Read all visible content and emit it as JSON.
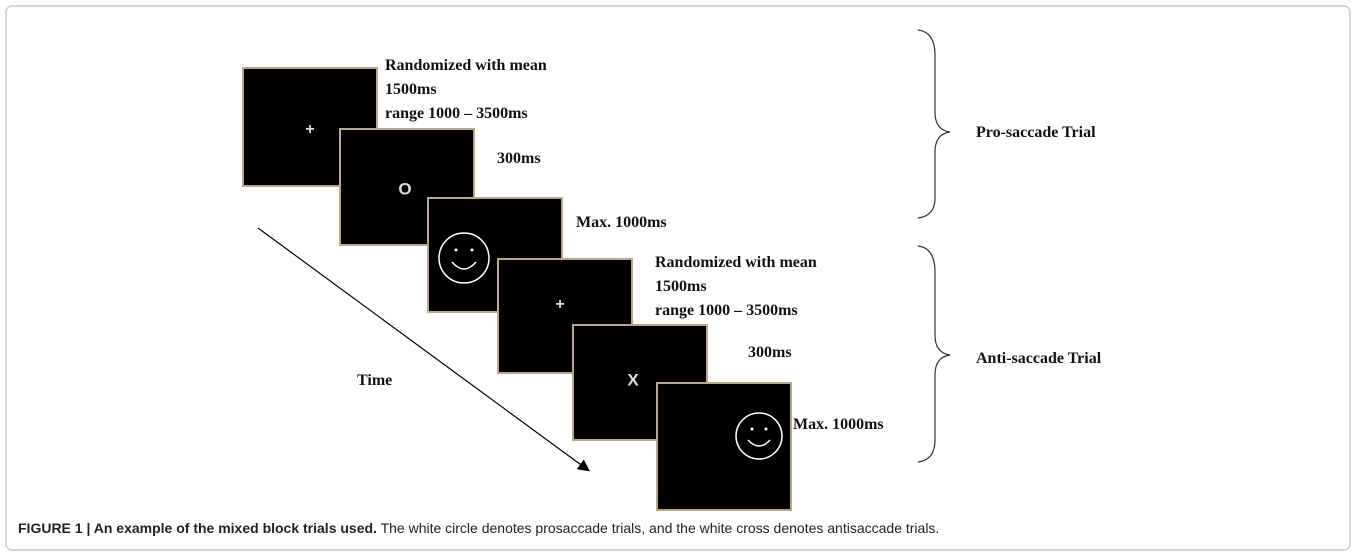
{
  "trials": [
    {
      "label": "Pro-saccade Trial",
      "screens": [
        {
          "symbol": "+",
          "lines": [
            "Randomized with mean",
            "1500ms",
            "range 1000 – 3500ms"
          ]
        },
        {
          "symbol": "O",
          "lines": [
            "300ms"
          ]
        },
        {
          "lines": [
            "Max. 1000ms"
          ]
        }
      ]
    },
    {
      "label": "Anti-saccade Trial",
      "screens": [
        {
          "symbol": "+",
          "lines": [
            "Randomized with mean",
            "1500ms",
            "range 1000 – 3500ms"
          ]
        },
        {
          "symbol": "X",
          "lines": [
            "300ms"
          ]
        },
        {
          "lines": [
            "Max. 1000ms"
          ]
        }
      ]
    }
  ],
  "time_label": "Time",
  "caption": {
    "label": "FIGURE 1 | An example of the mixed block trials used.",
    "text": "The white circle denotes prosaccade trials, and the white cross denotes antisaccade trials."
  }
}
